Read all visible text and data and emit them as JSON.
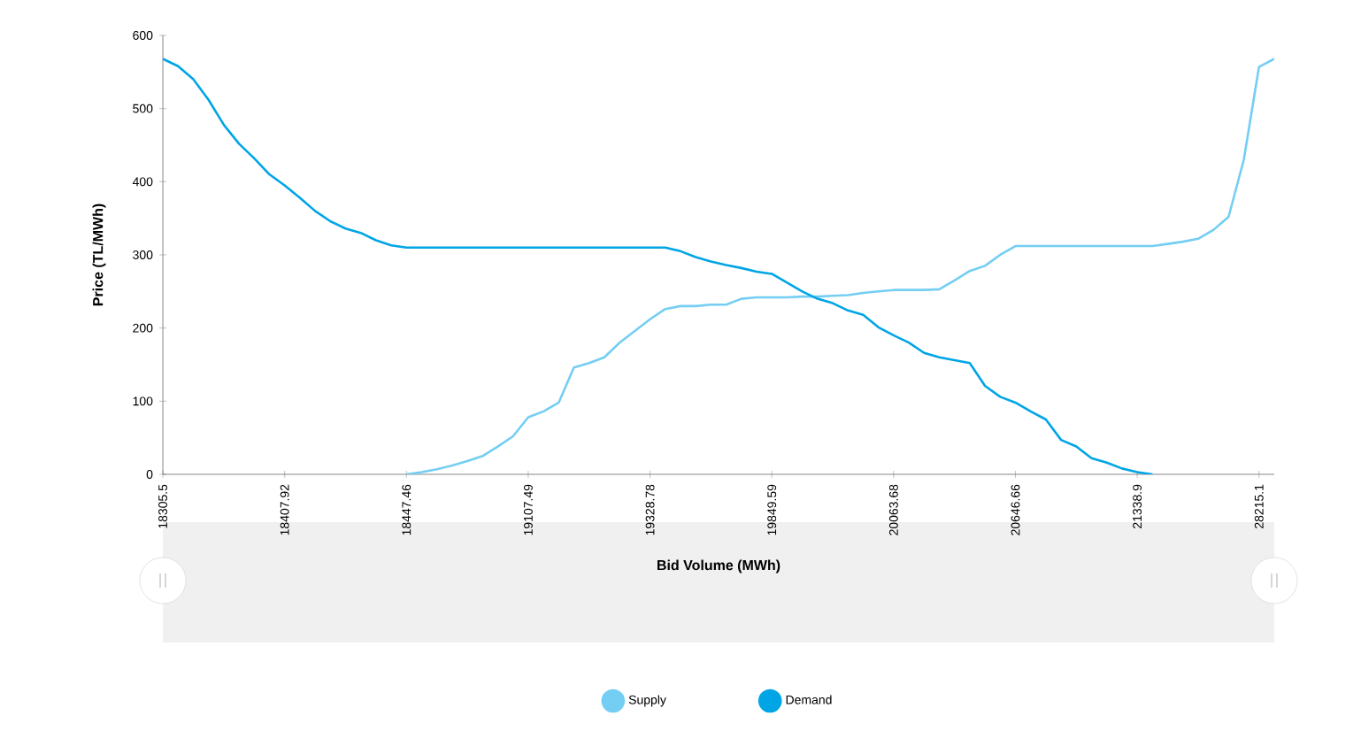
{
  "chart_data": {
    "type": "line",
    "xlabel": "Bid Volume (MWh)",
    "ylabel": "Price (TL/MWh)",
    "categories": [
      "18305.5",
      null,
      null,
      null,
      null,
      null,
      null,
      null,
      "18407.92",
      null,
      null,
      null,
      null,
      null,
      null,
      null,
      "18447.46",
      null,
      null,
      null,
      null,
      null,
      null,
      null,
      "19107.49",
      null,
      null,
      null,
      null,
      null,
      null,
      null,
      "19328.78",
      null,
      null,
      null,
      null,
      null,
      null,
      null,
      "19849.59",
      null,
      null,
      null,
      null,
      null,
      null,
      null,
      "20063.68",
      null,
      null,
      null,
      null,
      null,
      null,
      null,
      "20646.66",
      null,
      null,
      null,
      null,
      null,
      null,
      null,
      "21338.9",
      null,
      null,
      null,
      null,
      null,
      null,
      null,
      "28215.1",
      null
    ],
    "series": [
      {
        "name": "Supply",
        "color": "#74cef3",
        "values": [
          null,
          null,
          null,
          null,
          null,
          null,
          null,
          null,
          null,
          null,
          null,
          null,
          null,
          null,
          null,
          null,
          0,
          3,
          7,
          12,
          18,
          25,
          38,
          52,
          78,
          86,
          98,
          146,
          152,
          160,
          180,
          196,
          212,
          226,
          230,
          230,
          232,
          232,
          240,
          242,
          242,
          242,
          243,
          243,
          244,
          245,
          248,
          250,
          252,
          252,
          252,
          253,
          265,
          278,
          285,
          300,
          312,
          312,
          312,
          312,
          312,
          312,
          312,
          312,
          312,
          312,
          315,
          318,
          322,
          334,
          352,
          430,
          557,
          568
        ]
      },
      {
        "name": "Demand",
        "color": "#00a5e6",
        "values": [
          568,
          558,
          540,
          512,
          478,
          452,
          432,
          410,
          395,
          378,
          360,
          346,
          336,
          330,
          320,
          313,
          310,
          310,
          310,
          310,
          310,
          310,
          310,
          310,
          310,
          310,
          310,
          310,
          310,
          310,
          310,
          310,
          310,
          310,
          305,
          297,
          291,
          286,
          282,
          277,
          274,
          262,
          250,
          240,
          234,
          224,
          218,
          201,
          190,
          180,
          166,
          160,
          156,
          152,
          121,
          106,
          98,
          86,
          75,
          47,
          38,
          22,
          16,
          8,
          3,
          0,
          null,
          null,
          null,
          null,
          null,
          null,
          null,
          null
        ]
      }
    ],
    "ylim": [
      0,
      600
    ],
    "yticks": [
      0,
      100,
      200,
      300,
      400,
      500,
      600
    ],
    "legend": "bottom"
  }
}
